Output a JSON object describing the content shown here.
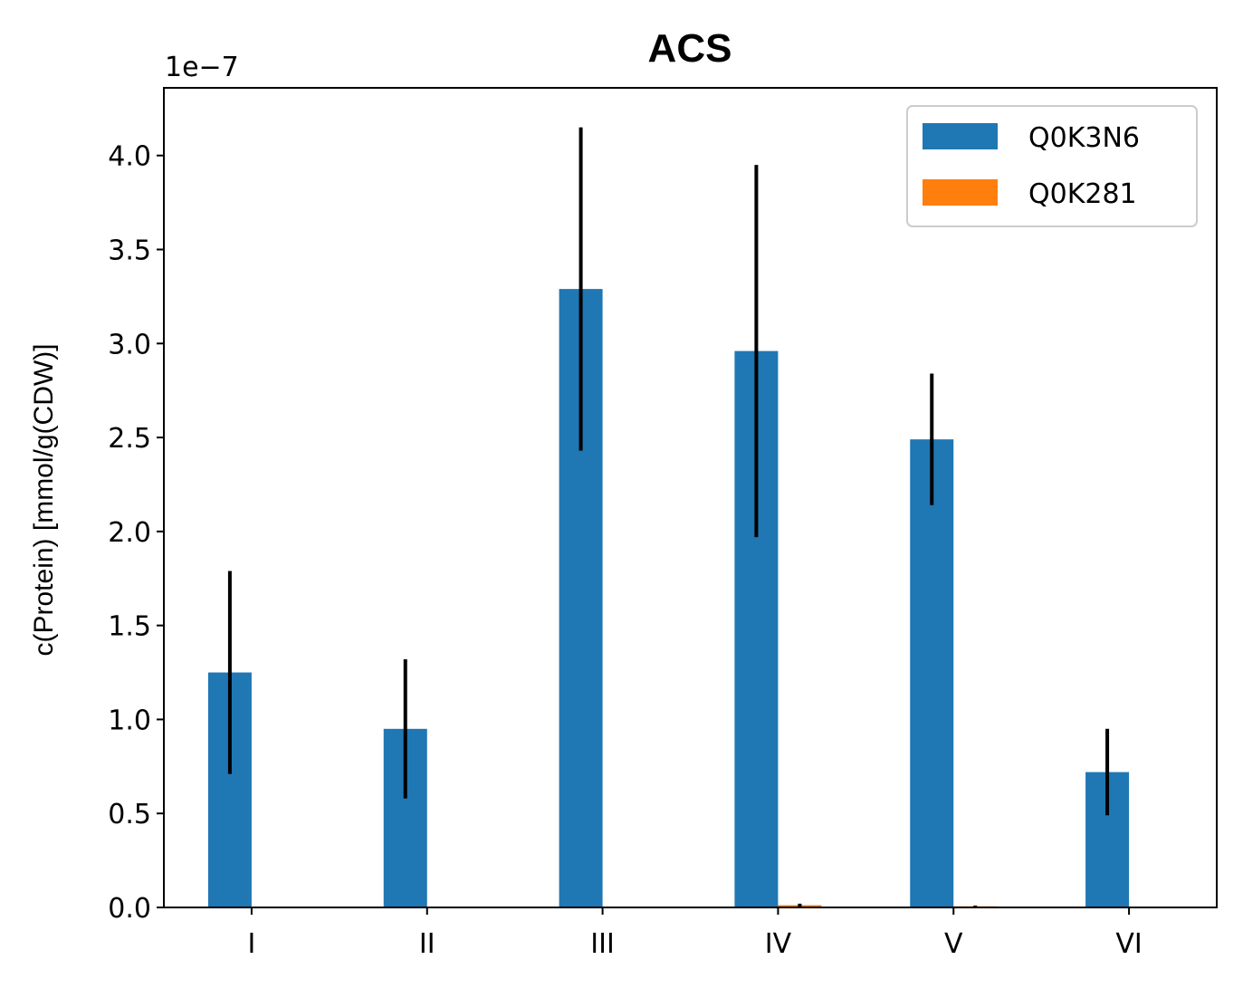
{
  "chart_data": {
    "type": "bar",
    "title": "ACS",
    "xlabel": "",
    "ylabel": "c(Protein) [mmol/g(CDW)]",
    "offset_label": "1e−7",
    "scale": 1e-07,
    "categories": [
      "I",
      "II",
      "III",
      "IV",
      "V",
      "VI"
    ],
    "ylim": [
      0,
      4.36
    ],
    "yticks": [
      "0.0",
      "0.5",
      "1.0",
      "1.5",
      "2.0",
      "2.5",
      "3.0",
      "3.5",
      "4.0"
    ],
    "grid": false,
    "legend_position": "top-right",
    "series": [
      {
        "name": "Q0K3N6",
        "color": "#1f77b4",
        "values": [
          1.25,
          0.95,
          3.29,
          2.96,
          2.49,
          0.72
        ],
        "errors": [
          0.54,
          0.37,
          0.86,
          0.99,
          0.35,
          0.23
        ]
      },
      {
        "name": "Q0K281",
        "color": "#ff7f0e",
        "values": [
          0.0,
          0.0,
          0.0,
          0.012,
          0.006,
          0.0
        ],
        "errors": [
          0.0,
          0.0,
          0.0,
          0.008,
          0.004,
          0.0
        ]
      }
    ]
  }
}
